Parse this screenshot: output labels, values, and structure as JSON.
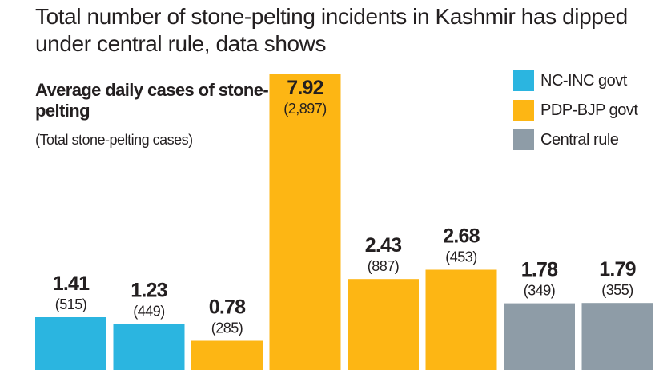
{
  "headline": "Total number of stone-pelting incidents in Kashmir has dipped under central rule, data shows",
  "colors": {
    "nc_inc": "#2bb5e0",
    "pdp_bjp": "#fdb614",
    "central": "#8e9ca7",
    "text": "#231f20"
  },
  "chart_data": {
    "type": "bar",
    "title": "Average daily cases of stone-pelting",
    "subtitle": "(Total stone-pelting cases)",
    "xlabel": "",
    "ylabel": "",
    "grid": false,
    "legend_position": "top-right",
    "legend": [
      {
        "label": "NC-INC govt",
        "color": "#2bb5e0"
      },
      {
        "label": "PDP-BJP govt",
        "color": "#fdb614"
      },
      {
        "label": "Central rule",
        "color": "#8e9ca7"
      }
    ],
    "values": [
      1.41,
      1.23,
      0.78,
      7.92,
      2.43,
      2.68,
      1.78,
      1.79
    ],
    "value_labels": [
      "1.41",
      "1.23",
      "0.78",
      "7.92",
      "2.43",
      "2.68",
      "1.78",
      "1.79"
    ],
    "total_labels": [
      "(515)",
      "(449)",
      "(285)",
      "(2,897)",
      "(887)",
      "(453)",
      "(349)",
      "(355)"
    ],
    "groups": [
      "NC-INC govt",
      "NC-INC govt",
      "PDP-BJP govt",
      "PDP-BJP govt",
      "PDP-BJP govt",
      "PDP-BJP govt",
      "Central rule",
      "Central rule"
    ]
  }
}
